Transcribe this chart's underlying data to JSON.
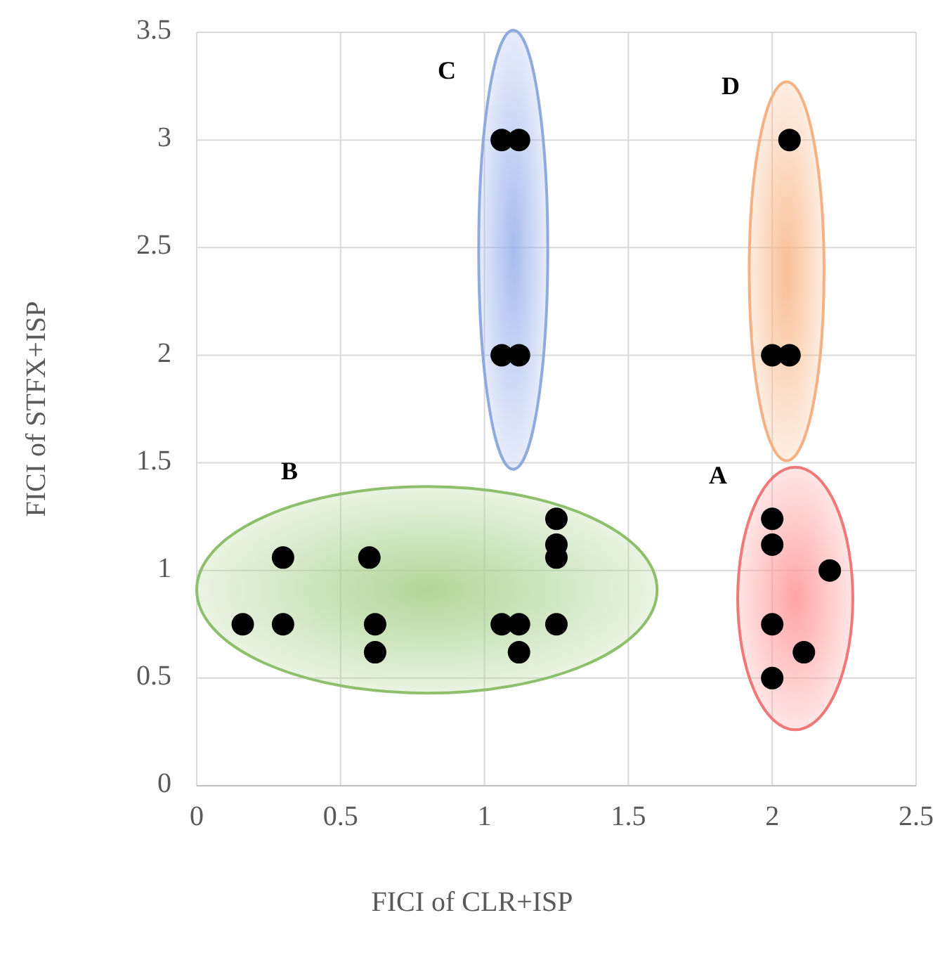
{
  "chart_data": {
    "type": "scatter",
    "xlabel": "FICI of CLR+ISP",
    "ylabel": "FICI of STFX+ISP",
    "series": [
      {
        "color": "#000000",
        "x": [
          0.16,
          0.3,
          0.3,
          0.6,
          0.62,
          0.62,
          1.06,
          1.12,
          1.12,
          1.25,
          1.25,
          1.25,
          1.25,
          1.06,
          1.12,
          1.06,
          1.12,
          2.06,
          2.0,
          2.06,
          2.0,
          2.0,
          2.2,
          2.0,
          2.11,
          2.0
        ],
        "values": [
          0.75,
          1.06,
          0.75,
          1.06,
          0.75,
          0.62,
          0.75,
          0.75,
          0.62,
          1.24,
          1.12,
          1.06,
          0.75,
          3,
          3,
          2,
          2,
          3,
          2,
          2,
          1.24,
          1.12,
          1.0,
          0.75,
          0.62,
          0.5
        ]
      }
    ],
    "xlim": [
      0,
      2.5
    ],
    "xticks": [
      0,
      0.5,
      1,
      1.5,
      2,
      2.5
    ],
    "ylim": [
      0,
      3.5
    ],
    "yticks": [
      0,
      0.5,
      1,
      1.5,
      2,
      2.5,
      3,
      3.5
    ],
    "grid": true,
    "marker": "circle",
    "annotations": [
      "A",
      "B",
      "C",
      "D"
    ]
  }
}
